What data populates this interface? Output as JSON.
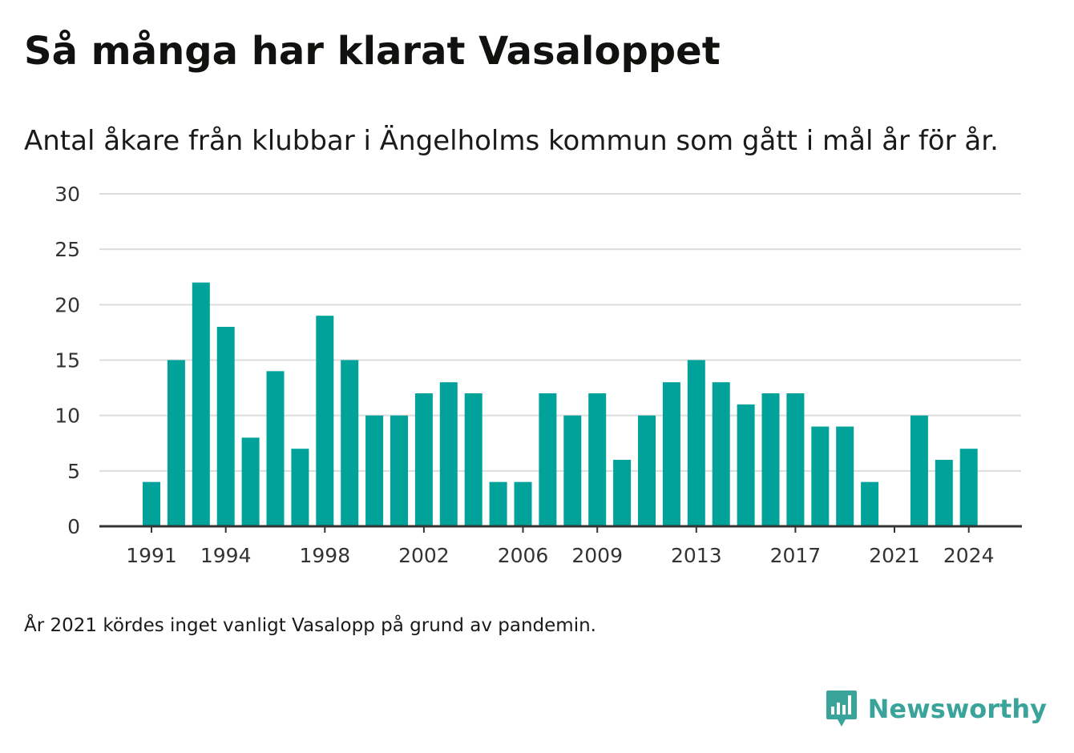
{
  "title": "Så många har klarat Vasaloppet",
  "subtitle": "Antal åkare från klubbar i Ängelholms kommun som gått i mål år för år.",
  "footnote": "År 2021 kördes inget vanligt Vasalopp på grund av pandemin.",
  "brand": {
    "name": "Newsworthy",
    "icon": "newsworthy-logo-icon",
    "color": "#3aa49b"
  },
  "chart_data": {
    "type": "bar",
    "title": "Så många har klarat Vasaloppet",
    "subtitle": "Antal åkare från klubbar i Ängelholms kommun som gått i mål år för år.",
    "xlabel": "",
    "ylabel": "",
    "bar_color": "#00a29a",
    "grid_color": "#dcdcdc",
    "grid": true,
    "ylim": [
      0,
      30
    ],
    "yticks": [
      0,
      5,
      10,
      15,
      20,
      25,
      30
    ],
    "xticks": [
      1991,
      1994,
      1998,
      2002,
      2006,
      2009,
      2013,
      2017,
      2021,
      2024
    ],
    "x": [
      1991,
      1992,
      1993,
      1994,
      1995,
      1996,
      1997,
      1998,
      1999,
      2000,
      2001,
      2002,
      2003,
      2004,
      2005,
      2006,
      2007,
      2008,
      2009,
      2010,
      2011,
      2012,
      2013,
      2014,
      2015,
      2016,
      2017,
      2018,
      2019,
      2020,
      2021,
      2022,
      2023,
      2024
    ],
    "values": [
      4,
      15,
      22,
      18,
      8,
      14,
      7,
      19,
      15,
      10,
      10,
      12,
      13,
      12,
      4,
      4,
      12,
      10,
      12,
      6,
      10,
      13,
      15,
      13,
      11,
      12,
      12,
      9,
      9,
      4,
      0,
      10,
      6,
      7
    ]
  }
}
